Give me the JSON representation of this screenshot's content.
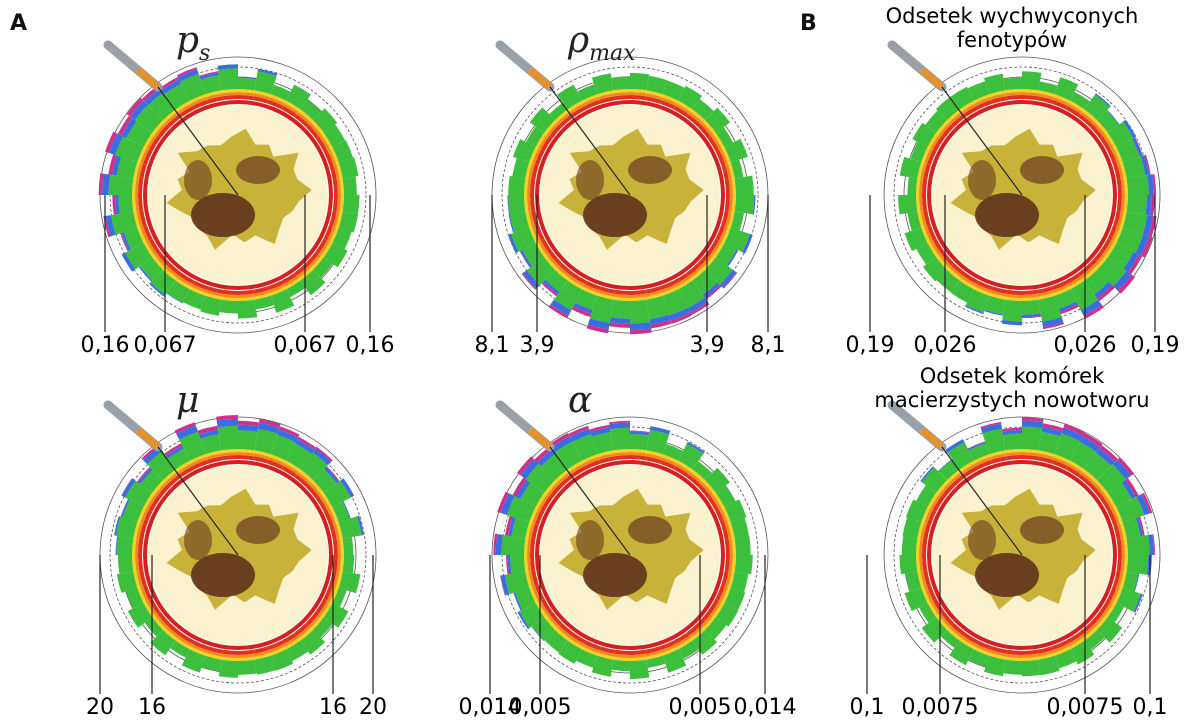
{
  "figure": {
    "panel_labels": [
      "A",
      "B"
    ],
    "panels": [
      {
        "symbol": "p",
        "subscript": "s",
        "labels": [
          "0,16",
          "0,067",
          "0,067",
          "0,16"
        ]
      },
      {
        "symbol": "ρ",
        "subscript": "max",
        "labels": [
          "8,1",
          "3,9",
          "3,9",
          "8,1"
        ]
      },
      {
        "title_lines": [
          "Odsetek wychwyconych",
          "fenotypów"
        ],
        "labels": [
          "0,19",
          "0,026",
          "0,026",
          "0,19"
        ]
      },
      {
        "symbol": "μ",
        "labels": [
          "20",
          "16",
          "16",
          "20"
        ]
      },
      {
        "symbol": "α",
        "labels": [
          "0,014",
          "0,005",
          "0,005",
          "0,014"
        ]
      },
      {
        "title_lines": [
          "Odsetek komórek",
          "macierzystych nowotworu"
        ],
        "labels": [
          "0,1",
          "0,0075",
          "0,0075",
          "0,1"
        ]
      }
    ]
  }
}
